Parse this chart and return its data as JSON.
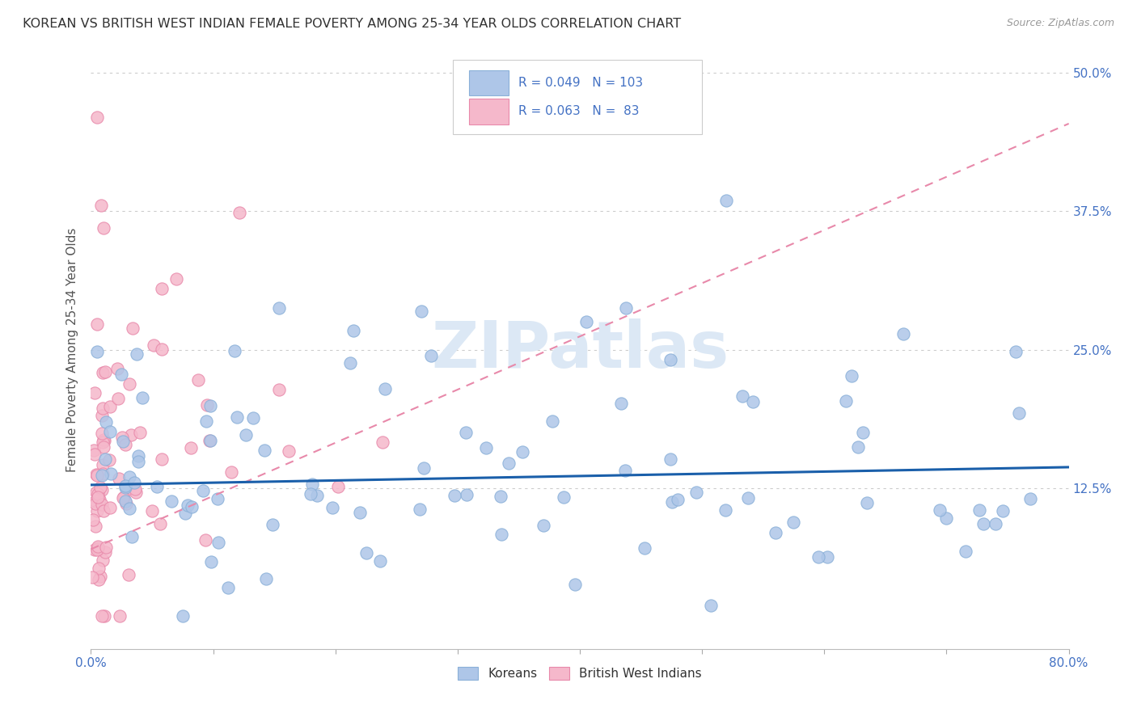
{
  "title": "KOREAN VS BRITISH WEST INDIAN FEMALE POVERTY AMONG 25-34 YEAR OLDS CORRELATION CHART",
  "source": "Source: ZipAtlas.com",
  "ylabel": "Female Poverty Among 25-34 Year Olds",
  "xlim": [
    0.0,
    0.8
  ],
  "ylim": [
    -0.02,
    0.52
  ],
  "xtick_positions": [
    0.0,
    0.1,
    0.2,
    0.3,
    0.4,
    0.5,
    0.6,
    0.7,
    0.8
  ],
  "xticklabels": [
    "0.0%",
    "",
    "",
    "",
    "",
    "",
    "",
    "",
    "80.0%"
  ],
  "ytick_positions": [
    0.0,
    0.125,
    0.25,
    0.375,
    0.5
  ],
  "yticklabels_right": [
    "",
    "12.5%",
    "25.0%",
    "37.5%",
    "50.0%"
  ],
  "korean_color": "#aec6e8",
  "korean_edge": "#8ab0d8",
  "bwi_color": "#f5b8cb",
  "bwi_edge": "#e889aa",
  "trend_korean_color": "#1a5faa",
  "trend_bwi_color": "#e889aa",
  "legend_korean_label": "Koreans",
  "legend_bwi_label": "British West Indians",
  "grid_color": "#cccccc",
  "background_color": "#ffffff",
  "title_color": "#333333",
  "axis_color": "#4472c4",
  "watermark": "ZIPatlas",
  "watermark_color": "#dce8f5"
}
